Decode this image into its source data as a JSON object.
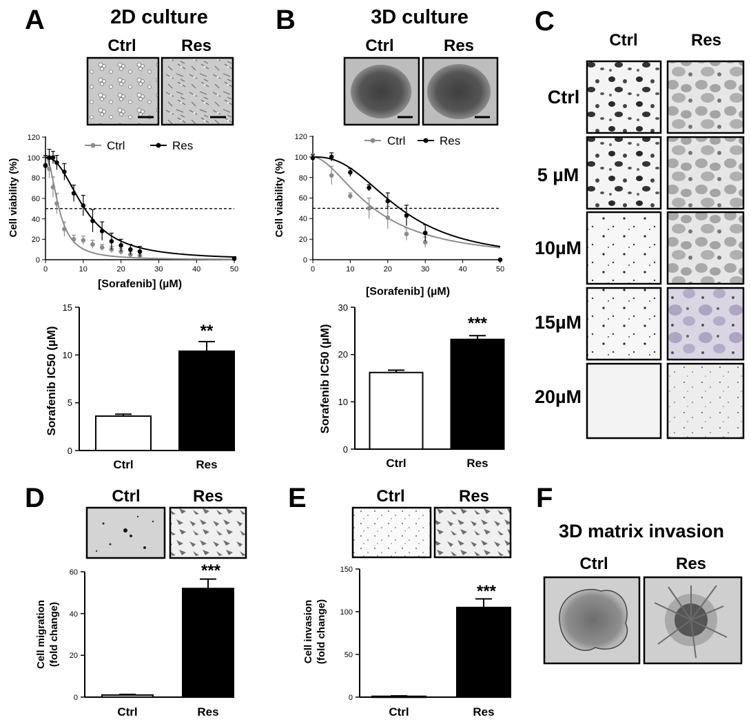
{
  "panels": {
    "A": {
      "letter": "A",
      "title": "2D culture",
      "img_labels": [
        "Ctrl",
        "Res"
      ],
      "curve": {
        "legend": [
          "Ctrl",
          "Res"
        ],
        "ylabel": "Cell viability (%)",
        "xlabel": "[Sorafenib] (µM)",
        "xticks": [
          "0",
          "10",
          "20",
          "30",
          "40",
          "50"
        ],
        "yticks": [
          "0",
          "20",
          "40",
          "60",
          "80",
          "100",
          "120"
        ]
      },
      "bar": {
        "ylabel": "Sorafenib IC50 (µM)",
        "yticks": [
          "0",
          "5",
          "10",
          "15"
        ],
        "categories": [
          "Ctrl",
          "Res"
        ],
        "sig": "**"
      }
    },
    "B": {
      "letter": "B",
      "title": "3D culture",
      "img_labels": [
        "Ctrl",
        "Res"
      ],
      "curve": {
        "legend": [
          "Ctrl",
          "Res"
        ],
        "ylabel": "Cell viability (%)",
        "xlabel": "[Sorafenib] (µM)",
        "xticks": [
          "0",
          "10",
          "20",
          "30",
          "40",
          "50"
        ],
        "yticks": [
          "0",
          "20",
          "40",
          "60",
          "80",
          "100",
          "120"
        ]
      },
      "bar": {
        "ylabel": "Sorafenib IC50 (µM)",
        "yticks": [
          "0",
          "10",
          "20",
          "30"
        ],
        "categories": [
          "Ctrl",
          "Res"
        ],
        "sig": "***"
      }
    },
    "C": {
      "letter": "C",
      "col_labels": [
        "Ctrl",
        "Res"
      ],
      "row_labels": [
        "Ctrl",
        "5 µM",
        "10µM",
        "15µM",
        "20µM"
      ]
    },
    "D": {
      "letter": "D",
      "img_labels": [
        "Ctrl",
        "Res"
      ],
      "bar": {
        "ylabel1": "Cell migration",
        "ylabel2": "(fold change)",
        "yticks": [
          "0",
          "20",
          "40",
          "60"
        ],
        "categories": [
          "Ctrl",
          "Res"
        ],
        "sig": "***"
      }
    },
    "E": {
      "letter": "E",
      "img_labels": [
        "Ctrl",
        "Res"
      ],
      "bar": {
        "ylabel1": "Cell invasion",
        "ylabel2": "(fold change)",
        "yticks": [
          "0",
          "50",
          "100",
          "150"
        ],
        "categories": [
          "Ctrl",
          "Res"
        ],
        "sig": "***"
      }
    },
    "F": {
      "letter": "F",
      "title": "3D matrix invasion",
      "img_labels": [
        "Ctrl",
        "Res"
      ]
    }
  },
  "chart_data": [
    {
      "id": "A-curve",
      "type": "scatter",
      "title": "2D culture",
      "xlabel": "[Sorafenib] (µM)",
      "ylabel": "Cell viability (%)",
      "xlim": [
        0,
        50
      ],
      "ylim": [
        0,
        120
      ],
      "reference_line_y": 50,
      "series": [
        {
          "name": "Ctrl",
          "color": "#8c8c8c",
          "x": [
            0,
            1,
            2,
            3,
            5,
            7.5,
            10,
            12.5,
            15,
            17.5,
            20,
            22.5,
            25,
            50
          ],
          "y": [
            93,
            89,
            71,
            55,
            30,
            20,
            19,
            15,
            12,
            10,
            8,
            5,
            4,
            1
          ],
          "err": [
            8,
            9,
            10,
            10,
            7,
            4,
            4,
            4,
            3,
            3,
            3,
            3,
            3,
            2
          ],
          "fit_ic50": 3.6,
          "fit_hill": 2.1
        },
        {
          "name": "Res",
          "color": "#000000",
          "x": [
            0,
            1,
            2,
            3,
            5,
            7.5,
            10,
            12.5,
            15,
            17.5,
            20,
            22.5,
            25,
            50
          ],
          "y": [
            92,
            100,
            100,
            95,
            86,
            65,
            53,
            38,
            28,
            18,
            14,
            10,
            8,
            1
          ],
          "err": [
            10,
            8,
            6,
            7,
            8,
            8,
            10,
            11,
            9,
            8,
            6,
            5,
            5,
            2
          ],
          "fit_ic50": 10.4,
          "fit_hill": 2.3
        }
      ]
    },
    {
      "id": "B-curve",
      "type": "scatter",
      "title": "3D culture",
      "xlabel": "[Sorafenib] (µM)",
      "ylabel": "Cell viability (%)",
      "xlim": [
        0,
        50
      ],
      "ylim": [
        0,
        120
      ],
      "reference_line_y": 50,
      "series": [
        {
          "name": "Ctrl",
          "color": "#8c8c8c",
          "x": [
            0,
            5,
            10,
            15,
            20,
            25,
            30
          ],
          "y": [
            99,
            82,
            62,
            50,
            41,
            25,
            17
          ],
          "err": [
            4,
            9,
            3,
            10,
            11,
            6,
            5
          ],
          "fit_ic50": 16.2,
          "fit_hill": 1.8
        },
        {
          "name": "Res",
          "color": "#000000",
          "x": [
            0,
            5,
            10,
            15,
            20,
            25,
            30,
            50
          ],
          "y": [
            99,
            100,
            85,
            70,
            57,
            43,
            26,
            0
          ],
          "err": [
            3,
            4,
            4,
            3,
            8,
            10,
            8,
            0
          ],
          "fit_ic50": 23.2,
          "fit_hill": 2.5
        }
      ]
    },
    {
      "id": "A-bar",
      "type": "bar",
      "ylabel": "Sorafenib IC50 (µM)",
      "categories": [
        "Ctrl",
        "Res"
      ],
      "values": [
        3.6,
        10.4
      ],
      "err": [
        0.2,
        1.0
      ],
      "ylim": [
        0,
        15
      ],
      "fills": [
        "#ffffff",
        "#000000"
      ],
      "significance": "**"
    },
    {
      "id": "B-bar",
      "type": "bar",
      "ylabel": "Sorafenib IC50 (µM)",
      "categories": [
        "Ctrl",
        "Res"
      ],
      "values": [
        16.2,
        23.2
      ],
      "err": [
        0.5,
        0.8
      ],
      "ylim": [
        0,
        30
      ],
      "fills": [
        "#ffffff",
        "#000000"
      ],
      "significance": "***"
    },
    {
      "id": "D-bar",
      "type": "bar",
      "ylabel": "Cell migration (fold change)",
      "categories": [
        "Ctrl",
        "Res"
      ],
      "values": [
        1,
        52
      ],
      "err": [
        0.3,
        4.5
      ],
      "ylim": [
        0,
        60
      ],
      "fills": [
        "#ffffff",
        "#000000"
      ],
      "significance": "***"
    },
    {
      "id": "E-bar",
      "type": "bar",
      "ylabel": "Cell invasion (fold change)",
      "categories": [
        "Ctrl",
        "Res"
      ],
      "values": [
        1,
        105
      ],
      "err": [
        0.5,
        10
      ],
      "ylim": [
        0,
        150
      ],
      "fills": [
        "#ffffff",
        "#000000"
      ],
      "significance": "***"
    }
  ]
}
